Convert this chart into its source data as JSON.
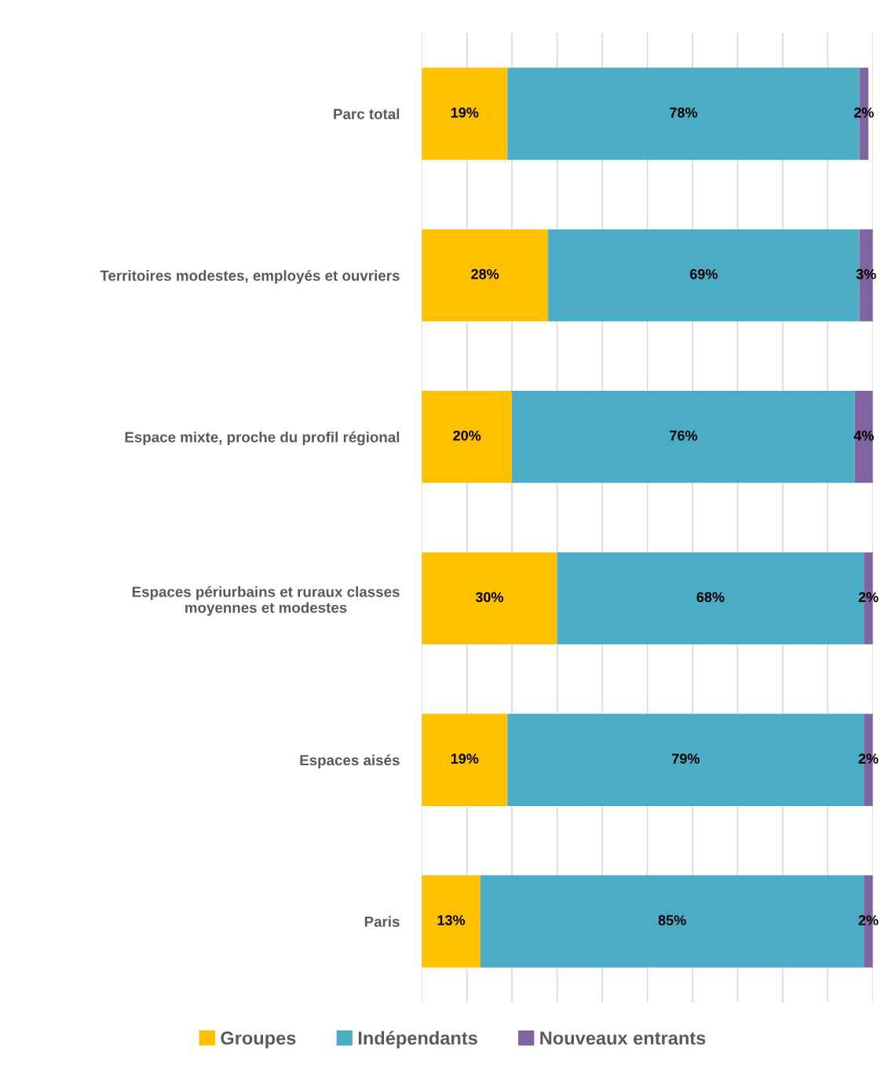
{
  "chart_data": {
    "type": "bar",
    "orientation": "horizontal",
    "stacked": true,
    "categories": [
      "Parc total",
      "Territoires modestes, employés et ouvriers",
      "Espace mixte, proche du profil régional",
      "Espaces périurbains et ruraux classes\nmoyennes et modestes",
      "Espaces aisés",
      "Paris"
    ],
    "series": [
      {
        "name": "Groupes",
        "color": "#ffc000",
        "values": [
          19,
          28,
          20,
          30,
          19,
          13
        ],
        "value_labels": [
          "19%",
          "28%",
          "20%",
          "30%",
          "19%",
          "13%"
        ]
      },
      {
        "name": "Indépendants",
        "color": "#4bacc6",
        "values": [
          78,
          69,
          76,
          68,
          79,
          85
        ],
        "value_labels": [
          "78%",
          "69%",
          "76%",
          "68%",
          "79%",
          "85%"
        ]
      },
      {
        "name": "Nouveaux entrants",
        "color": "#8064a2",
        "values": [
          2,
          3,
          4,
          2,
          2,
          2
        ],
        "value_labels": [
          "2%",
          "3%",
          "4%",
          "2%",
          "2%",
          "2%"
        ]
      }
    ],
    "xlim": [
      0,
      100
    ],
    "xticks": [
      {
        "value": 0,
        "label": null
      },
      {
        "value": 10,
        "label": null
      },
      {
        "value": 20,
        "label": null
      },
      {
        "value": 30,
        "label": null
      },
      {
        "value": 40,
        "label": null
      },
      {
        "value": 50,
        "label": null
      },
      {
        "value": 60,
        "label": null
      },
      {
        "value": 70,
        "label": null
      },
      {
        "value": 80,
        "label": null
      },
      {
        "value": 90,
        "label": null
      },
      {
        "value": 100,
        "label": null
      }
    ],
    "tick_labels": "y",
    "grid": "x",
    "legend": "bottom"
  }
}
